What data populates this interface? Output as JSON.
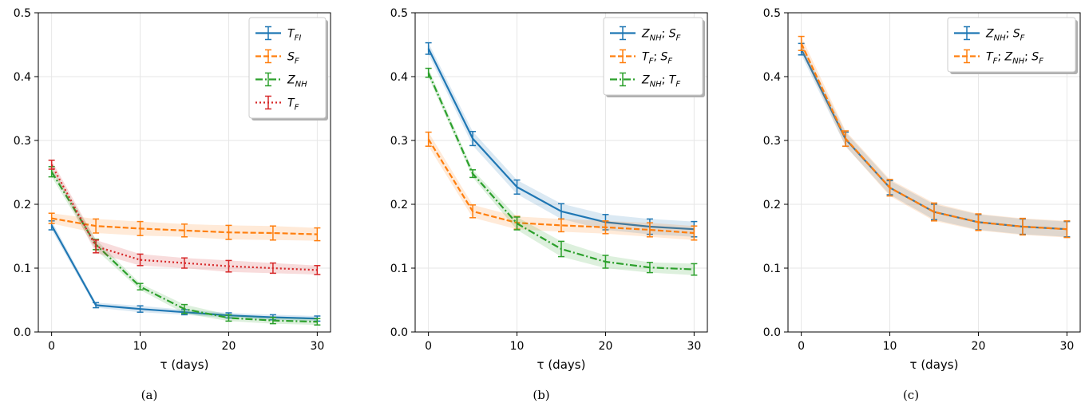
{
  "chart_data": [
    {
      "type": "line",
      "caption": "(a)",
      "xlabel": "τ (days)",
      "ylabel": "",
      "xlim": [
        -1.5,
        31.5
      ],
      "ylim": [
        0,
        0.5
      ],
      "xticks": [
        0,
        10,
        20,
        30
      ],
      "yticks": [
        0.0,
        0.1,
        0.2,
        0.3,
        0.4,
        0.5
      ],
      "ytick_labels": [
        "0.0",
        "0.1",
        "0.2",
        "0.3",
        "0.4",
        "0.5"
      ],
      "grid": true,
      "legend_position": "top-right",
      "x": [
        0,
        5,
        10,
        15,
        20,
        25,
        30
      ],
      "series": [
        {
          "name": "T_FI",
          "name_parts": [
            "T",
            "FI"
          ],
          "color": "#1f77b4",
          "dash": "solid",
          "values": [
            0.167,
            0.042,
            0.036,
            0.031,
            0.026,
            0.023,
            0.021
          ],
          "errors": [
            0.007,
            0.004,
            0.005,
            0.004,
            0.004,
            0.004,
            0.004
          ]
        },
        {
          "name": "S_F",
          "name_parts": [
            "S",
            "F"
          ],
          "color": "#ff7f0e",
          "dash": "dashed",
          "values": [
            0.178,
            0.166,
            0.162,
            0.159,
            0.156,
            0.155,
            0.153
          ],
          "errors": [
            0.008,
            0.011,
            0.011,
            0.01,
            0.011,
            0.011,
            0.01
          ]
        },
        {
          "name": "Z_NH",
          "name_parts": [
            "Z",
            "NH"
          ],
          "color": "#2ca02c",
          "dash": "dashdot",
          "values": [
            0.251,
            0.137,
            0.071,
            0.036,
            0.022,
            0.018,
            0.016
          ],
          "errors": [
            0.008,
            0.008,
            0.005,
            0.007,
            0.005,
            0.005,
            0.005
          ]
        },
        {
          "name": "T_F",
          "name_parts": [
            "T",
            "F"
          ],
          "color": "#d62728",
          "dash": "dotted",
          "values": [
            0.262,
            0.134,
            0.113,
            0.108,
            0.103,
            0.1,
            0.097
          ],
          "errors": [
            0.007,
            0.01,
            0.009,
            0.008,
            0.009,
            0.008,
            0.007
          ]
        }
      ]
    },
    {
      "type": "line",
      "caption": "(b)",
      "xlabel": "τ (days)",
      "ylabel": "",
      "xlim": [
        -1.5,
        31.5
      ],
      "ylim": [
        0,
        0.5
      ],
      "xticks": [
        0,
        10,
        20,
        30
      ],
      "yticks": [
        0.0,
        0.1,
        0.2,
        0.3,
        0.4,
        0.5
      ],
      "ytick_labels": [
        "0.0",
        "0.1",
        "0.2",
        "0.3",
        "0.4",
        "0.5"
      ],
      "grid": true,
      "legend_position": "top-right",
      "x": [
        0,
        5,
        10,
        15,
        20,
        25,
        30
      ],
      "series": [
        {
          "name": "Z_NH; S_F",
          "name_parts": [
            "Z",
            "NH",
            "; ",
            "S",
            "F"
          ],
          "color": "#1f77b4",
          "dash": "solid",
          "values": [
            0.444,
            0.303,
            0.227,
            0.189,
            0.172,
            0.165,
            0.161
          ],
          "errors": [
            0.009,
            0.011,
            0.011,
            0.012,
            0.012,
            0.012,
            0.012
          ]
        },
        {
          "name": "T_F; S_F",
          "name_parts": [
            "T",
            "F",
            "; ",
            "S",
            "F"
          ],
          "color": "#ff7f0e",
          "dash": "dashed",
          "values": [
            0.302,
            0.189,
            0.171,
            0.167,
            0.164,
            0.16,
            0.155
          ],
          "errors": [
            0.011,
            0.01,
            0.01,
            0.01,
            0.01,
            0.011,
            0.011
          ]
        },
        {
          "name": "Z_NH; T_F",
          "name_parts": [
            "Z",
            "NH",
            "; ",
            "T",
            "F"
          ],
          "color": "#2ca02c",
          "dash": "dashdot",
          "values": [
            0.406,
            0.248,
            0.17,
            0.13,
            0.11,
            0.101,
            0.098
          ],
          "errors": [
            0.007,
            0.006,
            0.01,
            0.012,
            0.01,
            0.008,
            0.009
          ]
        }
      ]
    },
    {
      "type": "line",
      "caption": "(c)",
      "xlabel": "τ (days)",
      "ylabel": "",
      "xlim": [
        -1.5,
        31.5
      ],
      "ylim": [
        0,
        0.5
      ],
      "xticks": [
        0,
        10,
        20,
        30
      ],
      "yticks": [
        0.0,
        0.1,
        0.2,
        0.3,
        0.4,
        0.5
      ],
      "ytick_labels": [
        "0.0",
        "0.1",
        "0.2",
        "0.3",
        "0.4",
        "0.5"
      ],
      "grid": true,
      "legend_position": "top-right",
      "x": [
        0,
        5,
        10,
        15,
        20,
        25,
        30
      ],
      "series": [
        {
          "name": "Z_NH; S_F",
          "name_parts": [
            "Z",
            "NH",
            "; ",
            "S",
            "F"
          ],
          "color": "#1f77b4",
          "dash": "solid",
          "values": [
            0.443,
            0.302,
            0.226,
            0.188,
            0.172,
            0.165,
            0.161
          ],
          "errors": [
            0.009,
            0.011,
            0.011,
            0.012,
            0.012,
            0.012,
            0.012
          ]
        },
        {
          "name": "T_F; Z_NH; S_F",
          "name_parts": [
            "T",
            "F",
            "; ",
            "Z",
            "NH",
            "; ",
            "S",
            "F"
          ],
          "color": "#ff7f0e",
          "dash": "dashed",
          "values": [
            0.452,
            0.303,
            0.226,
            0.188,
            0.172,
            0.165,
            0.161
          ],
          "errors": [
            0.011,
            0.012,
            0.013,
            0.014,
            0.013,
            0.013,
            0.013
          ]
        }
      ]
    }
  ]
}
